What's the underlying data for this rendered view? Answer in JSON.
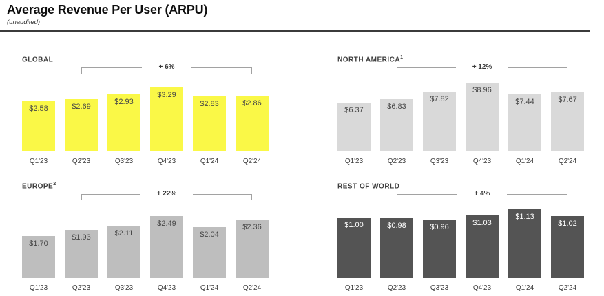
{
  "header": {
    "title": "Average Revenue Per User (ARPU)",
    "subtitle": "(unaudited)"
  },
  "chart_data": [
    {
      "type": "bar",
      "title": "GLOBAL",
      "superscript": "",
      "categories": [
        "Q1'23",
        "Q2'23",
        "Q3'23",
        "Q4'23",
        "Q1'24",
        "Q2'24"
      ],
      "values": [
        2.58,
        2.69,
        2.93,
        3.29,
        2.83,
        2.86
      ],
      "labels": [
        "$2.58",
        "$2.69",
        "$2.93",
        "$3.29",
        "$2.83",
        "$2.86"
      ],
      "change_label": "+ 6%",
      "change_span": [
        "Q2'23",
        "Q2'24"
      ],
      "bar_color": "#FAF847",
      "value_label_color": "#474747",
      "legend": "none",
      "gridlines": false
    },
    {
      "type": "bar",
      "title": "NORTH AMERICA",
      "superscript": "1",
      "categories": [
        "Q1'23",
        "Q2'23",
        "Q3'23",
        "Q4'23",
        "Q1'24",
        "Q2'24"
      ],
      "values": [
        6.37,
        6.83,
        7.82,
        8.96,
        7.44,
        7.67
      ],
      "labels": [
        "$6.37",
        "$6.83",
        "$7.82",
        "$8.96",
        "$7.44",
        "$7.67"
      ],
      "change_label": "+ 12%",
      "change_span": [
        "Q2'23",
        "Q2'24"
      ],
      "bar_color": "#D9D9D9",
      "value_label_color": "#474747",
      "legend": "none",
      "gridlines": false
    },
    {
      "type": "bar",
      "title": "EUROPE",
      "superscript": "2",
      "categories": [
        "Q1'23",
        "Q2'23",
        "Q3'23",
        "Q4'23",
        "Q1'24",
        "Q2'24"
      ],
      "values": [
        1.7,
        1.93,
        2.11,
        2.49,
        2.04,
        2.36
      ],
      "labels": [
        "$1.70",
        "$1.93",
        "$2.11",
        "$2.49",
        "$2.04",
        "$2.36"
      ],
      "change_label": "+ 22%",
      "change_span": [
        "Q2'23",
        "Q2'24"
      ],
      "bar_color": "#BEBEBE",
      "value_label_color": "#474747",
      "legend": "none",
      "gridlines": false
    },
    {
      "type": "bar",
      "title": "REST OF WORLD",
      "superscript": "",
      "categories": [
        "Q1'23",
        "Q2'23",
        "Q3'23",
        "Q4'23",
        "Q1'24",
        "Q2'24"
      ],
      "values": [
        1.0,
        0.98,
        0.96,
        1.03,
        1.13,
        1.02
      ],
      "labels": [
        "$1.00",
        "$0.98",
        "$0.96",
        "$1.03",
        "$1.13",
        "$1.02"
      ],
      "change_label": "+ 4%",
      "change_span": [
        "Q2'23",
        "Q2'24"
      ],
      "bar_color": "#545454",
      "value_label_color": "#FFFFFF",
      "legend": "none",
      "gridlines": false
    }
  ]
}
